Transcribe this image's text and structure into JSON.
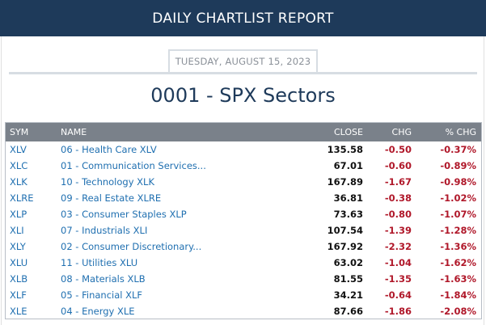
{
  "header": {
    "title": "DAILY CHARTLIST REPORT"
  },
  "report": {
    "date": "TUESDAY, AUGUST 15, 2023",
    "list_title": "0001 - SPX Sectors"
  },
  "table": {
    "columns": {
      "sym": "SYM",
      "name": "NAME",
      "close": "CLOSE",
      "chg": "CHG",
      "pct": "% CHG"
    },
    "rows": [
      {
        "sym": "XLV",
        "name": "06 - Health Care XLV",
        "close": "135.58",
        "chg": "-0.50",
        "pct": "-0.37%"
      },
      {
        "sym": "XLC",
        "name": "01 - Communication Services...",
        "close": "67.01",
        "chg": "-0.60",
        "pct": "-0.89%"
      },
      {
        "sym": "XLK",
        "name": "10 - Technology XLK",
        "close": "167.89",
        "chg": "-1.67",
        "pct": "-0.98%"
      },
      {
        "sym": "XLRE",
        "name": "09 - Real Estate XLRE",
        "close": "36.81",
        "chg": "-0.38",
        "pct": "-1.02%"
      },
      {
        "sym": "XLP",
        "name": "03 - Consumer Staples XLP",
        "close": "73.63",
        "chg": "-0.80",
        "pct": "-1.07%"
      },
      {
        "sym": "XLI",
        "name": "07 - Industrials XLI",
        "close": "107.54",
        "chg": "-1.39",
        "pct": "-1.28%"
      },
      {
        "sym": "XLY",
        "name": "02 - Consumer Discretionary...",
        "close": "167.92",
        "chg": "-2.32",
        "pct": "-1.36%"
      },
      {
        "sym": "XLU",
        "name": "11 - Utilities XLU",
        "close": "63.02",
        "chg": "-1.04",
        "pct": "-1.62%"
      },
      {
        "sym": "XLB",
        "name": "08 - Materials XLB",
        "close": "81.55",
        "chg": "-1.35",
        "pct": "-1.63%"
      },
      {
        "sym": "XLF",
        "name": "05 - Financial XLF",
        "close": "34.21",
        "chg": "-0.64",
        "pct": "-1.84%"
      },
      {
        "sym": "XLE",
        "name": "04 - Energy XLE",
        "close": "87.66",
        "chg": "-1.86",
        "pct": "-2.08%"
      }
    ]
  },
  "colors": {
    "header_bg": "#1e3a5a",
    "table_header_bg": "#7a818a",
    "link": "#1f6fb0",
    "negative": "#b0182a"
  }
}
